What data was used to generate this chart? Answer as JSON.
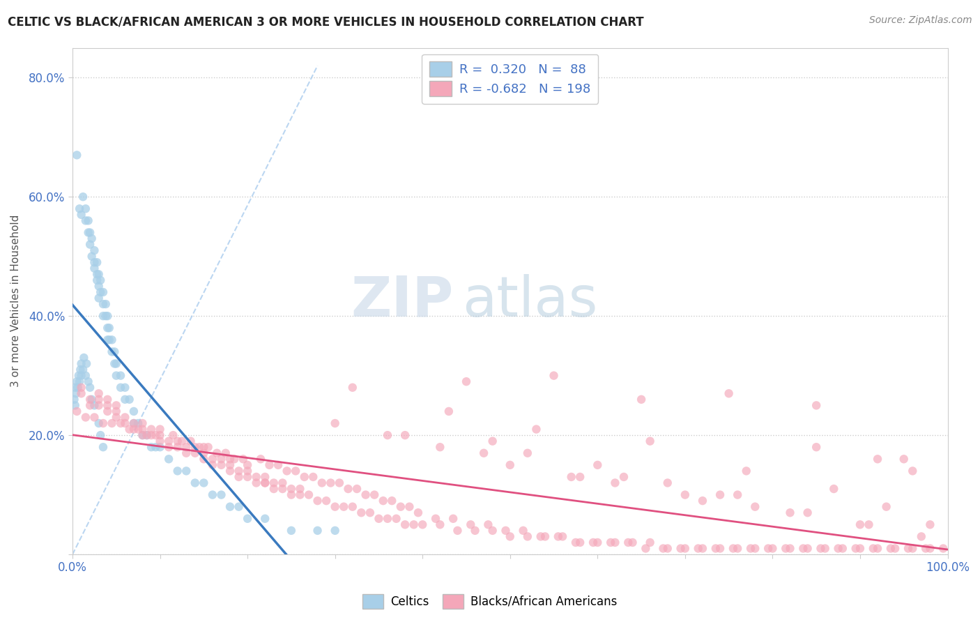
{
  "title": "CELTIC VS BLACK/AFRICAN AMERICAN 3 OR MORE VEHICLES IN HOUSEHOLD CORRELATION CHART",
  "source": "Source: ZipAtlas.com",
  "ylabel": "3 or more Vehicles in Household",
  "legend_label1": "Celtics",
  "legend_label2": "Blacks/African Americans",
  "r1": 0.32,
  "n1": 88,
  "r2": -0.682,
  "n2": 198,
  "color_blue": "#a8cfe8",
  "color_pink": "#f4a7b9",
  "color_blue_line": "#3a7abf",
  "color_pink_line": "#e05080",
  "color_dashed": "#aaccee",
  "background_color": "#ffffff",
  "xlim": [
    0.0,
    1.0
  ],
  "ylim": [
    0.0,
    0.85
  ],
  "blue_x": [
    0.005,
    0.008,
    0.01,
    0.012,
    0.015,
    0.015,
    0.018,
    0.018,
    0.02,
    0.02,
    0.022,
    0.022,
    0.025,
    0.025,
    0.025,
    0.028,
    0.028,
    0.028,
    0.03,
    0.03,
    0.03,
    0.032,
    0.032,
    0.035,
    0.035,
    0.035,
    0.038,
    0.038,
    0.04,
    0.04,
    0.04,
    0.042,
    0.042,
    0.045,
    0.045,
    0.048,
    0.048,
    0.05,
    0.05,
    0.055,
    0.055,
    0.06,
    0.06,
    0.065,
    0.07,
    0.07,
    0.075,
    0.08,
    0.085,
    0.09,
    0.095,
    0.1,
    0.11,
    0.12,
    0.13,
    0.14,
    0.15,
    0.16,
    0.17,
    0.18,
    0.19,
    0.2,
    0.22,
    0.25,
    0.28,
    0.3,
    0.002,
    0.003,
    0.003,
    0.004,
    0.005,
    0.006,
    0.007,
    0.008,
    0.009,
    0.01,
    0.01,
    0.012,
    0.013,
    0.015,
    0.016,
    0.018,
    0.02,
    0.022,
    0.025,
    0.03,
    0.032,
    0.035
  ],
  "blue_y": [
    0.67,
    0.58,
    0.57,
    0.6,
    0.58,
    0.56,
    0.54,
    0.56,
    0.52,
    0.54,
    0.5,
    0.53,
    0.48,
    0.51,
    0.49,
    0.46,
    0.49,
    0.47,
    0.45,
    0.47,
    0.43,
    0.44,
    0.46,
    0.42,
    0.44,
    0.4,
    0.4,
    0.42,
    0.38,
    0.4,
    0.36,
    0.36,
    0.38,
    0.34,
    0.36,
    0.34,
    0.32,
    0.3,
    0.32,
    0.28,
    0.3,
    0.28,
    0.26,
    0.26,
    0.24,
    0.22,
    0.22,
    0.2,
    0.2,
    0.18,
    0.18,
    0.18,
    0.16,
    0.14,
    0.14,
    0.12,
    0.12,
    0.1,
    0.1,
    0.08,
    0.08,
    0.06,
    0.06,
    0.04,
    0.04,
    0.04,
    0.26,
    0.25,
    0.28,
    0.27,
    0.29,
    0.28,
    0.3,
    0.29,
    0.31,
    0.3,
    0.32,
    0.31,
    0.33,
    0.3,
    0.32,
    0.29,
    0.28,
    0.26,
    0.25,
    0.22,
    0.2,
    0.18
  ],
  "pink_x": [
    0.01,
    0.01,
    0.02,
    0.02,
    0.03,
    0.03,
    0.03,
    0.04,
    0.04,
    0.04,
    0.05,
    0.05,
    0.05,
    0.06,
    0.06,
    0.07,
    0.07,
    0.08,
    0.08,
    0.08,
    0.09,
    0.09,
    0.1,
    0.1,
    0.1,
    0.11,
    0.11,
    0.12,
    0.12,
    0.13,
    0.13,
    0.14,
    0.14,
    0.15,
    0.15,
    0.15,
    0.16,
    0.16,
    0.17,
    0.17,
    0.18,
    0.18,
    0.18,
    0.19,
    0.19,
    0.2,
    0.2,
    0.2,
    0.21,
    0.21,
    0.22,
    0.22,
    0.23,
    0.23,
    0.24,
    0.24,
    0.25,
    0.25,
    0.26,
    0.26,
    0.27,
    0.28,
    0.29,
    0.3,
    0.31,
    0.32,
    0.33,
    0.34,
    0.35,
    0.36,
    0.37,
    0.38,
    0.39,
    0.4,
    0.42,
    0.44,
    0.46,
    0.48,
    0.5,
    0.52,
    0.54,
    0.56,
    0.58,
    0.6,
    0.62,
    0.64,
    0.66,
    0.68,
    0.7,
    0.72,
    0.74,
    0.76,
    0.78,
    0.8,
    0.82,
    0.84,
    0.86,
    0.88,
    0.9,
    0.92,
    0.94,
    0.96,
    0.98,
    0.005,
    0.015,
    0.025,
    0.035,
    0.045,
    0.055,
    0.065,
    0.075,
    0.085,
    0.095,
    0.115,
    0.125,
    0.135,
    0.145,
    0.155,
    0.165,
    0.175,
    0.185,
    0.195,
    0.215,
    0.225,
    0.235,
    0.245,
    0.255,
    0.265,
    0.275,
    0.285,
    0.295,
    0.305,
    0.315,
    0.325,
    0.335,
    0.345,
    0.355,
    0.365,
    0.375,
    0.385,
    0.395,
    0.415,
    0.435,
    0.455,
    0.475,
    0.495,
    0.515,
    0.535,
    0.555,
    0.575,
    0.595,
    0.615,
    0.635,
    0.655,
    0.675,
    0.695,
    0.715,
    0.735,
    0.755,
    0.775,
    0.795,
    0.815,
    0.835,
    0.855,
    0.875,
    0.895,
    0.915,
    0.935,
    0.955,
    0.975,
    0.995,
    0.32,
    0.45,
    0.55,
    0.65,
    0.75,
    0.85,
    0.95,
    0.38,
    0.42,
    0.5,
    0.58,
    0.62,
    0.7,
    0.78,
    0.85,
    0.92,
    0.96,
    0.22,
    0.3,
    0.48,
    0.63,
    0.72,
    0.82,
    0.9,
    0.52,
    0.6,
    0.68,
    0.76,
    0.84,
    0.91,
    0.97,
    0.43,
    0.53,
    0.66,
    0.77,
    0.87,
    0.93,
    0.98,
    0.36,
    0.47,
    0.57,
    0.74
  ],
  "pink_y": [
    0.28,
    0.27,
    0.26,
    0.25,
    0.27,
    0.26,
    0.25,
    0.25,
    0.24,
    0.26,
    0.24,
    0.23,
    0.25,
    0.23,
    0.22,
    0.22,
    0.21,
    0.22,
    0.21,
    0.2,
    0.21,
    0.2,
    0.2,
    0.19,
    0.21,
    0.19,
    0.18,
    0.19,
    0.18,
    0.18,
    0.17,
    0.18,
    0.17,
    0.17,
    0.16,
    0.18,
    0.16,
    0.15,
    0.16,
    0.15,
    0.15,
    0.14,
    0.16,
    0.14,
    0.13,
    0.14,
    0.13,
    0.15,
    0.13,
    0.12,
    0.13,
    0.12,
    0.12,
    0.11,
    0.12,
    0.11,
    0.11,
    0.1,
    0.11,
    0.1,
    0.1,
    0.09,
    0.09,
    0.08,
    0.08,
    0.08,
    0.07,
    0.07,
    0.06,
    0.06,
    0.06,
    0.05,
    0.05,
    0.05,
    0.05,
    0.04,
    0.04,
    0.04,
    0.03,
    0.03,
    0.03,
    0.03,
    0.02,
    0.02,
    0.02,
    0.02,
    0.02,
    0.01,
    0.01,
    0.01,
    0.01,
    0.01,
    0.01,
    0.01,
    0.01,
    0.01,
    0.01,
    0.01,
    0.01,
    0.01,
    0.01,
    0.01,
    0.01,
    0.24,
    0.23,
    0.23,
    0.22,
    0.22,
    0.22,
    0.21,
    0.21,
    0.2,
    0.2,
    0.2,
    0.19,
    0.19,
    0.18,
    0.18,
    0.17,
    0.17,
    0.16,
    0.16,
    0.16,
    0.15,
    0.15,
    0.14,
    0.14,
    0.13,
    0.13,
    0.12,
    0.12,
    0.12,
    0.11,
    0.11,
    0.1,
    0.1,
    0.09,
    0.09,
    0.08,
    0.08,
    0.07,
    0.06,
    0.06,
    0.05,
    0.05,
    0.04,
    0.04,
    0.03,
    0.03,
    0.02,
    0.02,
    0.02,
    0.02,
    0.01,
    0.01,
    0.01,
    0.01,
    0.01,
    0.01,
    0.01,
    0.01,
    0.01,
    0.01,
    0.01,
    0.01,
    0.01,
    0.01,
    0.01,
    0.01,
    0.01,
    0.01,
    0.28,
    0.29,
    0.3,
    0.26,
    0.27,
    0.25,
    0.16,
    0.2,
    0.18,
    0.15,
    0.13,
    0.12,
    0.1,
    0.08,
    0.18,
    0.16,
    0.14,
    0.12,
    0.22,
    0.19,
    0.13,
    0.09,
    0.07,
    0.05,
    0.17,
    0.15,
    0.12,
    0.1,
    0.07,
    0.05,
    0.03,
    0.24,
    0.21,
    0.19,
    0.14,
    0.11,
    0.08,
    0.05,
    0.2,
    0.17,
    0.13,
    0.1
  ]
}
